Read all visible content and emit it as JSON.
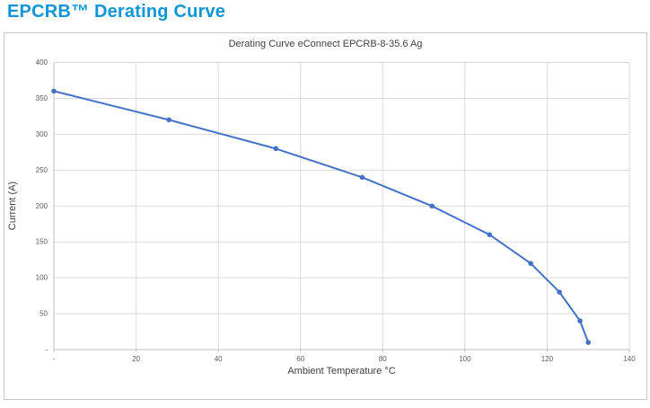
{
  "page": {
    "title": "EPCRB™ Derating Curve"
  },
  "colors": {
    "heading": "#0d95d6",
    "series_line": "#4472C4",
    "series_marker": "#4472C4",
    "gridline": "#d9d9d9",
    "axis_line": "#bfbfbf",
    "tick_text": "#595959",
    "label_text": "#404040",
    "panel_border": "#c8c8c8",
    "background": "#ffffff"
  },
  "chart_data": {
    "type": "line",
    "title": "Derating Curve eConnect EPCRB-8-35.6 Ag",
    "xlabel": "Ambient Temperature °C",
    "ylabel": "Current (A)",
    "xlim": [
      0,
      140
    ],
    "ylim": [
      0,
      400
    ],
    "grid": true,
    "legend": "none",
    "x_ticks": {
      "values": [
        0,
        20,
        40,
        60,
        80,
        100,
        120,
        140
      ],
      "labels": [
        "-",
        "20",
        "40",
        "60",
        "80",
        "100",
        "120",
        "140"
      ]
    },
    "y_ticks": {
      "values": [
        0,
        50,
        100,
        150,
        200,
        250,
        300,
        350,
        400
      ],
      "labels": [
        "-",
        "50",
        "100",
        "150",
        "200",
        "250",
        "300",
        "350",
        "400"
      ]
    },
    "series": [
      {
        "name": "Derating Curve eConnect EPCRB-8-35.6 Ag",
        "color": "#4472C4",
        "marker": "circle",
        "points": [
          [
            0,
            360
          ],
          [
            28,
            320
          ],
          [
            54,
            280
          ],
          [
            75,
            240
          ],
          [
            92,
            200
          ],
          [
            106,
            160
          ],
          [
            116,
            120
          ],
          [
            123,
            80
          ],
          [
            128,
            40
          ],
          [
            130,
            10
          ]
        ]
      }
    ]
  }
}
